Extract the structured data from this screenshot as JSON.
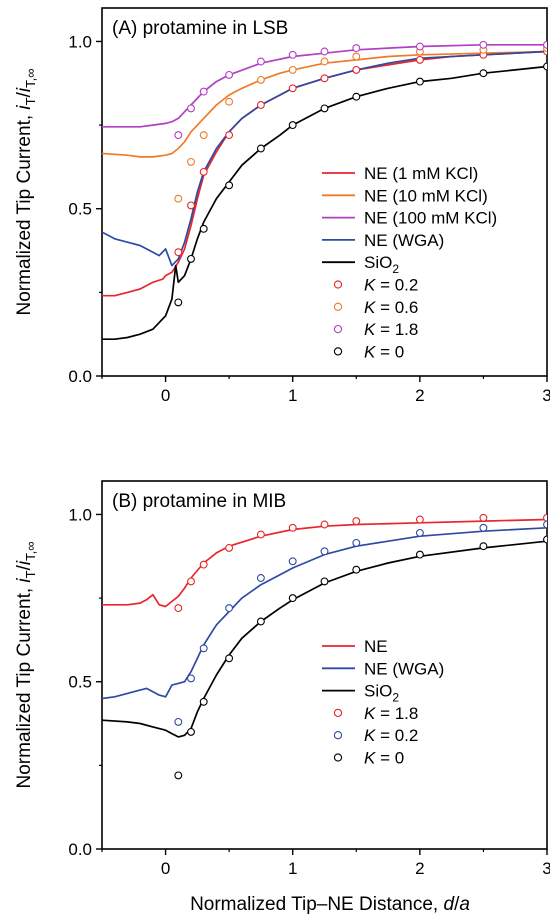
{
  "figure": {
    "xlabel": "Normalized Tip–NE Distance, d/a"
  },
  "chart_data": [
    {
      "type": "line",
      "title": "(A) protamine in LSB",
      "ylabel": "Normalized Tip Current, iT/iT,∞",
      "xlim": [
        -0.5,
        3.0
      ],
      "ylim": [
        0.0,
        1.1
      ],
      "xticks": [
        0,
        1,
        2,
        3
      ],
      "yticks": [
        0.0,
        0.5,
        1.0
      ],
      "ytick_labels": [
        "0.0",
        "0.5",
        "1.0"
      ],
      "legend_position": "right",
      "series": [
        {
          "name": "NE (1 mM KCl)",
          "kind": "line",
          "color": "#e8262c",
          "x": [
            -0.5,
            -0.4,
            -0.3,
            -0.2,
            -0.1,
            -0.02,
            0.0,
            0.05,
            0.1,
            0.15,
            0.2,
            0.25,
            0.3,
            0.4,
            0.5,
            0.6,
            0.75,
            0.9,
            1.0,
            1.25,
            1.5,
            1.75,
            2.0,
            2.25,
            2.5,
            2.75,
            3.0
          ],
          "y": [
            0.24,
            0.24,
            0.25,
            0.26,
            0.28,
            0.29,
            0.3,
            0.31,
            0.34,
            0.38,
            0.45,
            0.53,
            0.6,
            0.67,
            0.73,
            0.77,
            0.81,
            0.84,
            0.86,
            0.89,
            0.915,
            0.93,
            0.945,
            0.955,
            0.96,
            0.965,
            0.97
          ]
        },
        {
          "name": "NE (10 mM KCl)",
          "kind": "line",
          "color": "#f07b25",
          "x": [
            -0.5,
            -0.3,
            -0.2,
            -0.1,
            0.0,
            0.05,
            0.1,
            0.15,
            0.2,
            0.3,
            0.4,
            0.5,
            0.6,
            0.75,
            0.9,
            1.0,
            1.25,
            1.5,
            1.75,
            2.0,
            2.5,
            3.0
          ],
          "y": [
            0.665,
            0.66,
            0.655,
            0.655,
            0.66,
            0.665,
            0.68,
            0.7,
            0.73,
            0.77,
            0.81,
            0.84,
            0.86,
            0.885,
            0.905,
            0.915,
            0.935,
            0.945,
            0.955,
            0.96,
            0.965,
            0.97
          ]
        },
        {
          "name": "NE (100 mM KCl)",
          "kind": "line",
          "color": "#b23fc4",
          "x": [
            -0.5,
            -0.2,
            -0.1,
            0.0,
            0.05,
            0.1,
            0.15,
            0.2,
            0.3,
            0.4,
            0.5,
            0.75,
            1.0,
            1.25,
            1.5,
            2.0,
            2.5,
            3.0
          ],
          "y": [
            0.745,
            0.745,
            0.75,
            0.755,
            0.76,
            0.77,
            0.79,
            0.81,
            0.85,
            0.88,
            0.9,
            0.935,
            0.955,
            0.965,
            0.975,
            0.985,
            0.99,
            0.99
          ]
        },
        {
          "name": "NE (WGA)",
          "kind": "line",
          "color": "#2e4aa3",
          "x": [
            -0.5,
            -0.4,
            -0.3,
            -0.2,
            -0.15,
            -0.1,
            -0.05,
            0.0,
            0.05,
            0.1,
            0.15,
            0.2,
            0.25,
            0.3,
            0.4,
            0.5,
            0.6,
            0.75,
            0.9,
            1.0,
            1.25,
            1.5,
            1.75,
            2.0,
            2.5,
            3.0
          ],
          "y": [
            0.43,
            0.41,
            0.4,
            0.39,
            0.38,
            0.37,
            0.36,
            0.38,
            0.33,
            0.35,
            0.4,
            0.47,
            0.55,
            0.61,
            0.68,
            0.73,
            0.77,
            0.81,
            0.84,
            0.86,
            0.89,
            0.915,
            0.935,
            0.95,
            0.96,
            0.97
          ]
        },
        {
          "name": "SiO2",
          "kind": "line",
          "color": "#000000",
          "x": [
            -0.5,
            -0.4,
            -0.3,
            -0.2,
            -0.1,
            0.0,
            0.05,
            0.08,
            0.1,
            0.15,
            0.2,
            0.25,
            0.3,
            0.4,
            0.5,
            0.6,
            0.75,
            0.9,
            1.0,
            1.25,
            1.5,
            1.75,
            2.0,
            2.25,
            2.5,
            2.75,
            3.0
          ],
          "y": [
            0.11,
            0.11,
            0.115,
            0.125,
            0.14,
            0.18,
            0.23,
            0.33,
            0.28,
            0.3,
            0.35,
            0.41,
            0.46,
            0.53,
            0.58,
            0.63,
            0.68,
            0.72,
            0.75,
            0.8,
            0.835,
            0.86,
            0.88,
            0.89,
            0.905,
            0.915,
            0.925
          ]
        },
        {
          "name": "K = 0.2",
          "kind": "markers",
          "color": "#e8262c",
          "x": [
            0.1,
            0.2,
            0.3,
            0.5,
            0.75,
            1.0,
            1.25,
            1.5,
            2.0,
            2.5,
            3.0
          ],
          "y": [
            0.37,
            0.51,
            0.61,
            0.72,
            0.81,
            0.86,
            0.89,
            0.915,
            0.945,
            0.96,
            0.97
          ]
        },
        {
          "name": "K = 0.6",
          "kind": "markers",
          "color": "#f07b25",
          "x": [
            0.1,
            0.2,
            0.3,
            0.5,
            0.75,
            1.0,
            1.25,
            1.5,
            2.0,
            2.5,
            3.0
          ],
          "y": [
            0.53,
            0.64,
            0.72,
            0.82,
            0.885,
            0.915,
            0.94,
            0.955,
            0.97,
            0.975,
            0.98
          ]
        },
        {
          "name": "K = 1.8",
          "kind": "markers",
          "color": "#b23fc4",
          "x": [
            0.1,
            0.2,
            0.3,
            0.5,
            0.75,
            1.0,
            1.25,
            1.5,
            2.0,
            2.5,
            3.0
          ],
          "y": [
            0.72,
            0.8,
            0.85,
            0.9,
            0.94,
            0.96,
            0.97,
            0.98,
            0.985,
            0.99,
            0.99
          ]
        },
        {
          "name": "K = 0",
          "kind": "markers",
          "color": "#000000",
          "x": [
            0.1,
            0.2,
            0.3,
            0.5,
            0.75,
            1.0,
            1.25,
            1.5,
            2.0,
            2.5,
            3.0
          ],
          "y": [
            0.22,
            0.35,
            0.44,
            0.57,
            0.68,
            0.75,
            0.8,
            0.835,
            0.88,
            0.905,
            0.925
          ]
        }
      ]
    },
    {
      "type": "line",
      "title": "(B) protamine in MIB",
      "ylabel": "Normalized Tip Current, iT/iT,∞",
      "xlim": [
        -0.5,
        3.0
      ],
      "ylim": [
        0.0,
        1.1
      ],
      "xticks": [
        0,
        1,
        2,
        3
      ],
      "yticks": [
        0.0,
        0.5,
        1.0
      ],
      "ytick_labels": [
        "0.0",
        "0.5",
        "1.0"
      ],
      "legend_position": "right",
      "series": [
        {
          "name": "NE",
          "kind": "line",
          "color": "#e8262c",
          "x": [
            -0.5,
            -0.3,
            -0.2,
            -0.15,
            -0.1,
            -0.05,
            0.0,
            0.05,
            0.1,
            0.15,
            0.2,
            0.3,
            0.4,
            0.5,
            0.75,
            1.0,
            1.25,
            1.5,
            2.0,
            2.5,
            3.0
          ],
          "y": [
            0.73,
            0.73,
            0.735,
            0.745,
            0.76,
            0.73,
            0.725,
            0.74,
            0.755,
            0.78,
            0.81,
            0.855,
            0.885,
            0.905,
            0.935,
            0.955,
            0.965,
            0.97,
            0.975,
            0.98,
            0.985
          ]
        },
        {
          "name": "NE (WGA)",
          "kind": "line",
          "color": "#2e4aa3",
          "x": [
            -0.5,
            -0.4,
            -0.3,
            -0.2,
            -0.15,
            -0.1,
            -0.05,
            0.0,
            0.05,
            0.1,
            0.15,
            0.2,
            0.25,
            0.3,
            0.4,
            0.5,
            0.6,
            0.75,
            0.9,
            1.0,
            1.25,
            1.5,
            1.75,
            2.0,
            2.5,
            3.0
          ],
          "y": [
            0.45,
            0.455,
            0.465,
            0.475,
            0.48,
            0.47,
            0.46,
            0.455,
            0.49,
            0.495,
            0.5,
            0.53,
            0.57,
            0.61,
            0.67,
            0.71,
            0.75,
            0.79,
            0.82,
            0.84,
            0.88,
            0.905,
            0.92,
            0.935,
            0.95,
            0.96
          ]
        },
        {
          "name": "SiO2",
          "kind": "line",
          "color": "#000000",
          "x": [
            -0.5,
            -0.3,
            -0.2,
            -0.1,
            0.0,
            0.05,
            0.1,
            0.15,
            0.2,
            0.25,
            0.3,
            0.4,
            0.5,
            0.6,
            0.75,
            0.9,
            1.0,
            1.25,
            1.5,
            1.75,
            2.0,
            2.5,
            3.0
          ],
          "y": [
            0.385,
            0.38,
            0.375,
            0.365,
            0.355,
            0.345,
            0.335,
            0.34,
            0.36,
            0.41,
            0.45,
            0.52,
            0.58,
            0.63,
            0.68,
            0.72,
            0.745,
            0.795,
            0.83,
            0.855,
            0.875,
            0.9,
            0.92
          ]
        },
        {
          "name": "K = 1.8",
          "kind": "markers",
          "color": "#e8262c",
          "x": [
            0.1,
            0.2,
            0.3,
            0.5,
            0.75,
            1.0,
            1.25,
            1.5,
            2.0,
            2.5,
            3.0
          ],
          "y": [
            0.72,
            0.8,
            0.85,
            0.9,
            0.94,
            0.96,
            0.97,
            0.98,
            0.985,
            0.99,
            0.99
          ]
        },
        {
          "name": "K = 0.2",
          "kind": "markers",
          "color": "#2e4aa3",
          "x": [
            0.1,
            0.2,
            0.3,
            0.5,
            0.75,
            1.0,
            1.25,
            1.5,
            2.0,
            2.5,
            3.0
          ],
          "y": [
            0.38,
            0.51,
            0.6,
            0.72,
            0.81,
            0.86,
            0.89,
            0.915,
            0.945,
            0.96,
            0.97
          ]
        },
        {
          "name": "K = 0",
          "kind": "markers",
          "color": "#000000",
          "x": [
            0.1,
            0.2,
            0.3,
            0.5,
            0.75,
            1.0,
            1.25,
            1.5,
            2.0,
            2.5,
            3.0
          ],
          "y": [
            0.22,
            0.35,
            0.44,
            0.57,
            0.68,
            0.75,
            0.8,
            0.835,
            0.88,
            0.905,
            0.925
          ]
        }
      ]
    }
  ]
}
